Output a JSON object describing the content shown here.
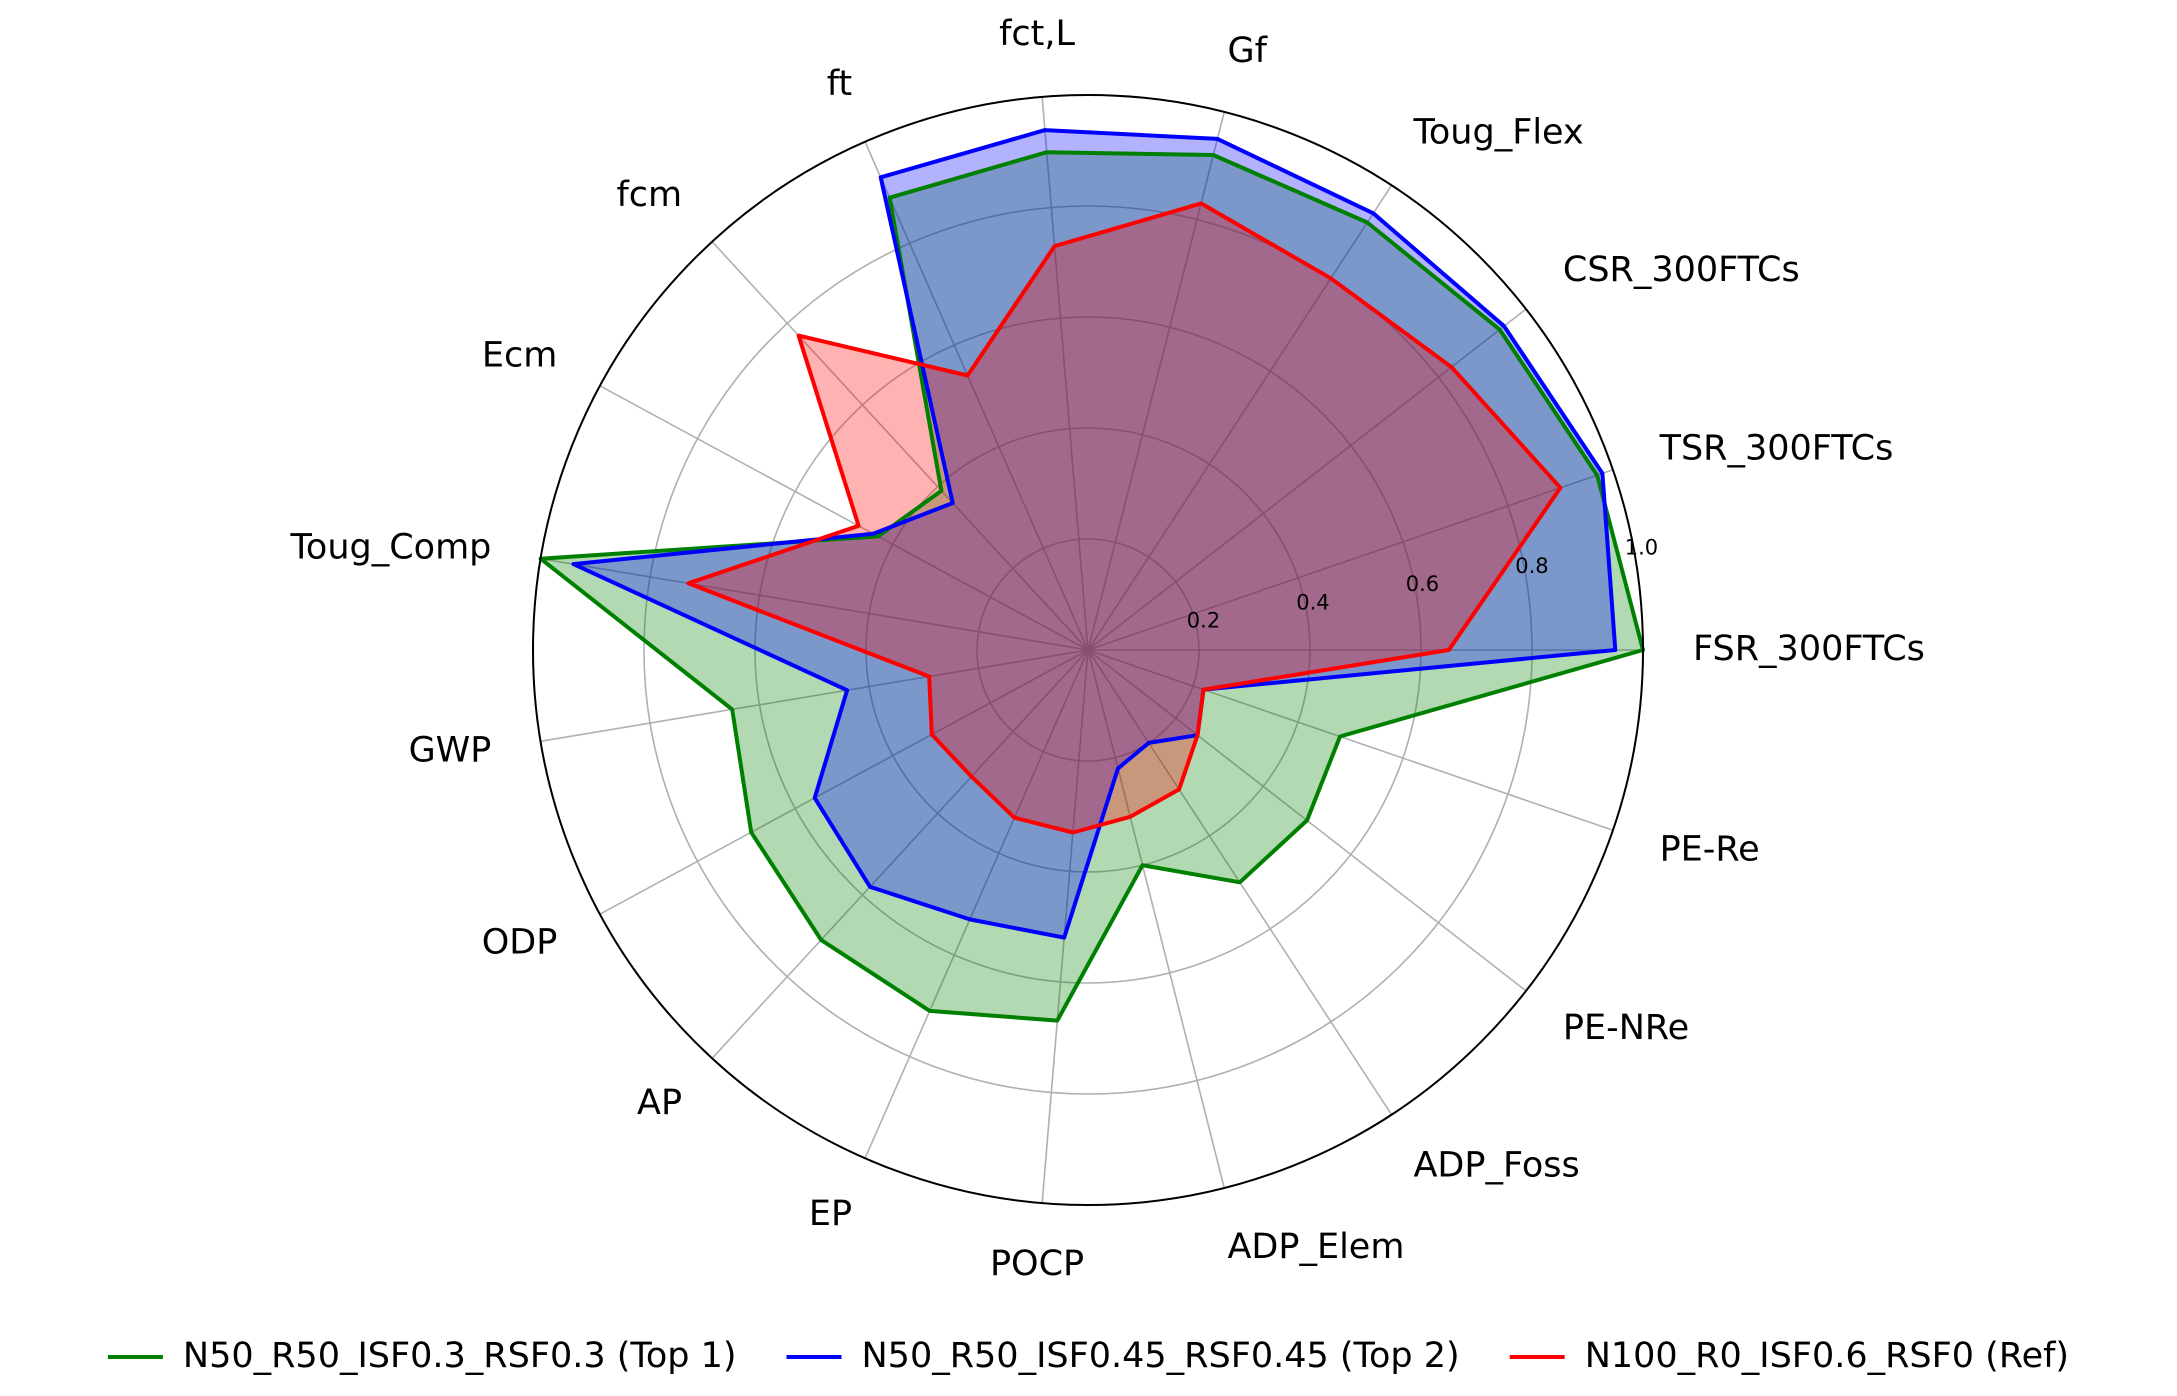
{
  "chart_data": {
    "type": "radar",
    "title": "",
    "axes": [
      "FSR_300FTCs",
      "TSR_300FTCs",
      "CSR_300FTCs",
      "Toug_Flex",
      "Gf",
      "fct,L",
      "ft",
      "fcm",
      "Ecm",
      "Toug_Comp",
      "GWP",
      "ODP",
      "AP",
      "EP",
      "POCP",
      "ADP_Elem",
      "ADP_Foss",
      "PE-NRe",
      "PE-Re"
    ],
    "rlim": [
      0,
      1.0
    ],
    "r_ticks": [
      0.2,
      0.4,
      0.6,
      0.8,
      1.0
    ],
    "r_tick_labels": [
      "0.2",
      "0.4",
      "0.6",
      "0.8",
      "1.0"
    ],
    "grid": true,
    "legend_position": "bottom",
    "series": [
      {
        "name": "N50_R50_ISF0.3_RSF0.3 (Top 1)",
        "color": "#008000",
        "values": [
          1.0,
          0.97,
          0.94,
          0.92,
          0.92,
          0.9,
          0.89,
          0.39,
          0.43,
          1.0,
          0.65,
          0.69,
          0.71,
          0.71,
          0.67,
          0.4,
          0.5,
          0.5,
          0.48
        ]
      },
      {
        "name": "N50_R50_ISF0.45_RSF0.45 (Top 2)",
        "color": "#0000ff",
        "values": [
          0.95,
          0.98,
          0.95,
          0.94,
          0.95,
          0.94,
          0.93,
          0.36,
          0.44,
          0.94,
          0.44,
          0.56,
          0.58,
          0.53,
          0.52,
          0.22,
          0.2,
          0.25,
          0.22
        ]
      },
      {
        "name": "N100_R0_ISF0.6_RSF0 (Ref)",
        "color": "#ff0000",
        "values": [
          0.65,
          0.9,
          0.83,
          0.8,
          0.83,
          0.73,
          0.54,
          0.77,
          0.47,
          0.73,
          0.29,
          0.32,
          0.31,
          0.33,
          0.33,
          0.31,
          0.3,
          0.25,
          0.22
        ]
      }
    ]
  }
}
